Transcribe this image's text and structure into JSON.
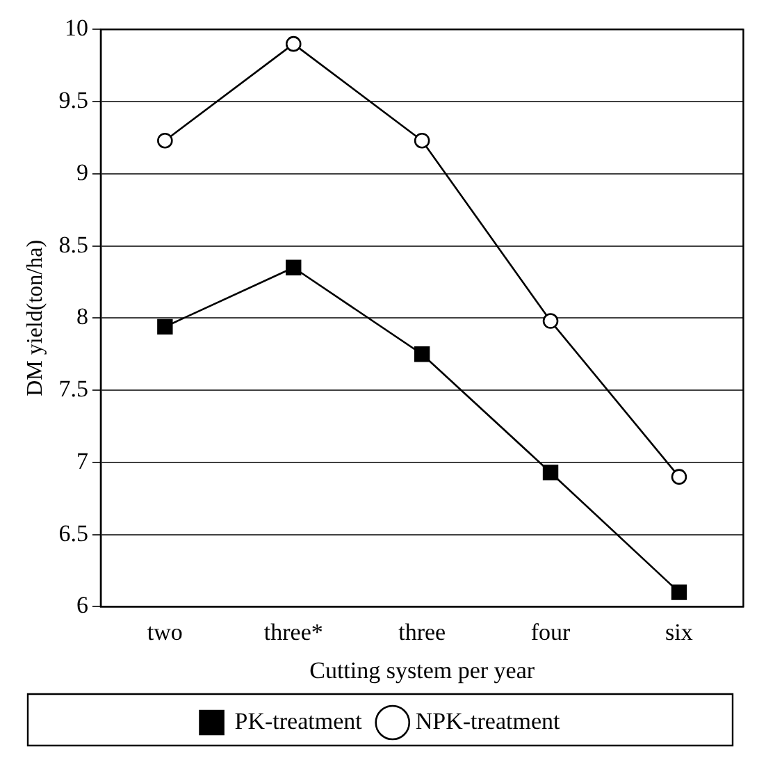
{
  "chart_data": {
    "type": "line",
    "xlabel": "Cutting system per year",
    "ylabel": "DM yield(ton/ha)",
    "categories": [
      "two",
      "three*",
      "three",
      "four",
      "six"
    ],
    "series": [
      {
        "name": "PK-treatment",
        "color": "#000000",
        "marker": "square",
        "values": [
          7.94,
          8.35,
          7.75,
          6.93,
          6.1
        ]
      },
      {
        "name": "NPK-treatment",
        "color": "#000000",
        "marker": "circle",
        "values": [
          9.23,
          9.9,
          9.23,
          7.98,
          6.9
        ]
      }
    ],
    "ylim": [
      6,
      10
    ],
    "yticks": [
      6,
      6.5,
      7,
      7.5,
      8,
      8.5,
      9,
      9.5,
      10
    ],
    "grid": "y",
    "legend": "bottom",
    "line_style": "solid"
  }
}
